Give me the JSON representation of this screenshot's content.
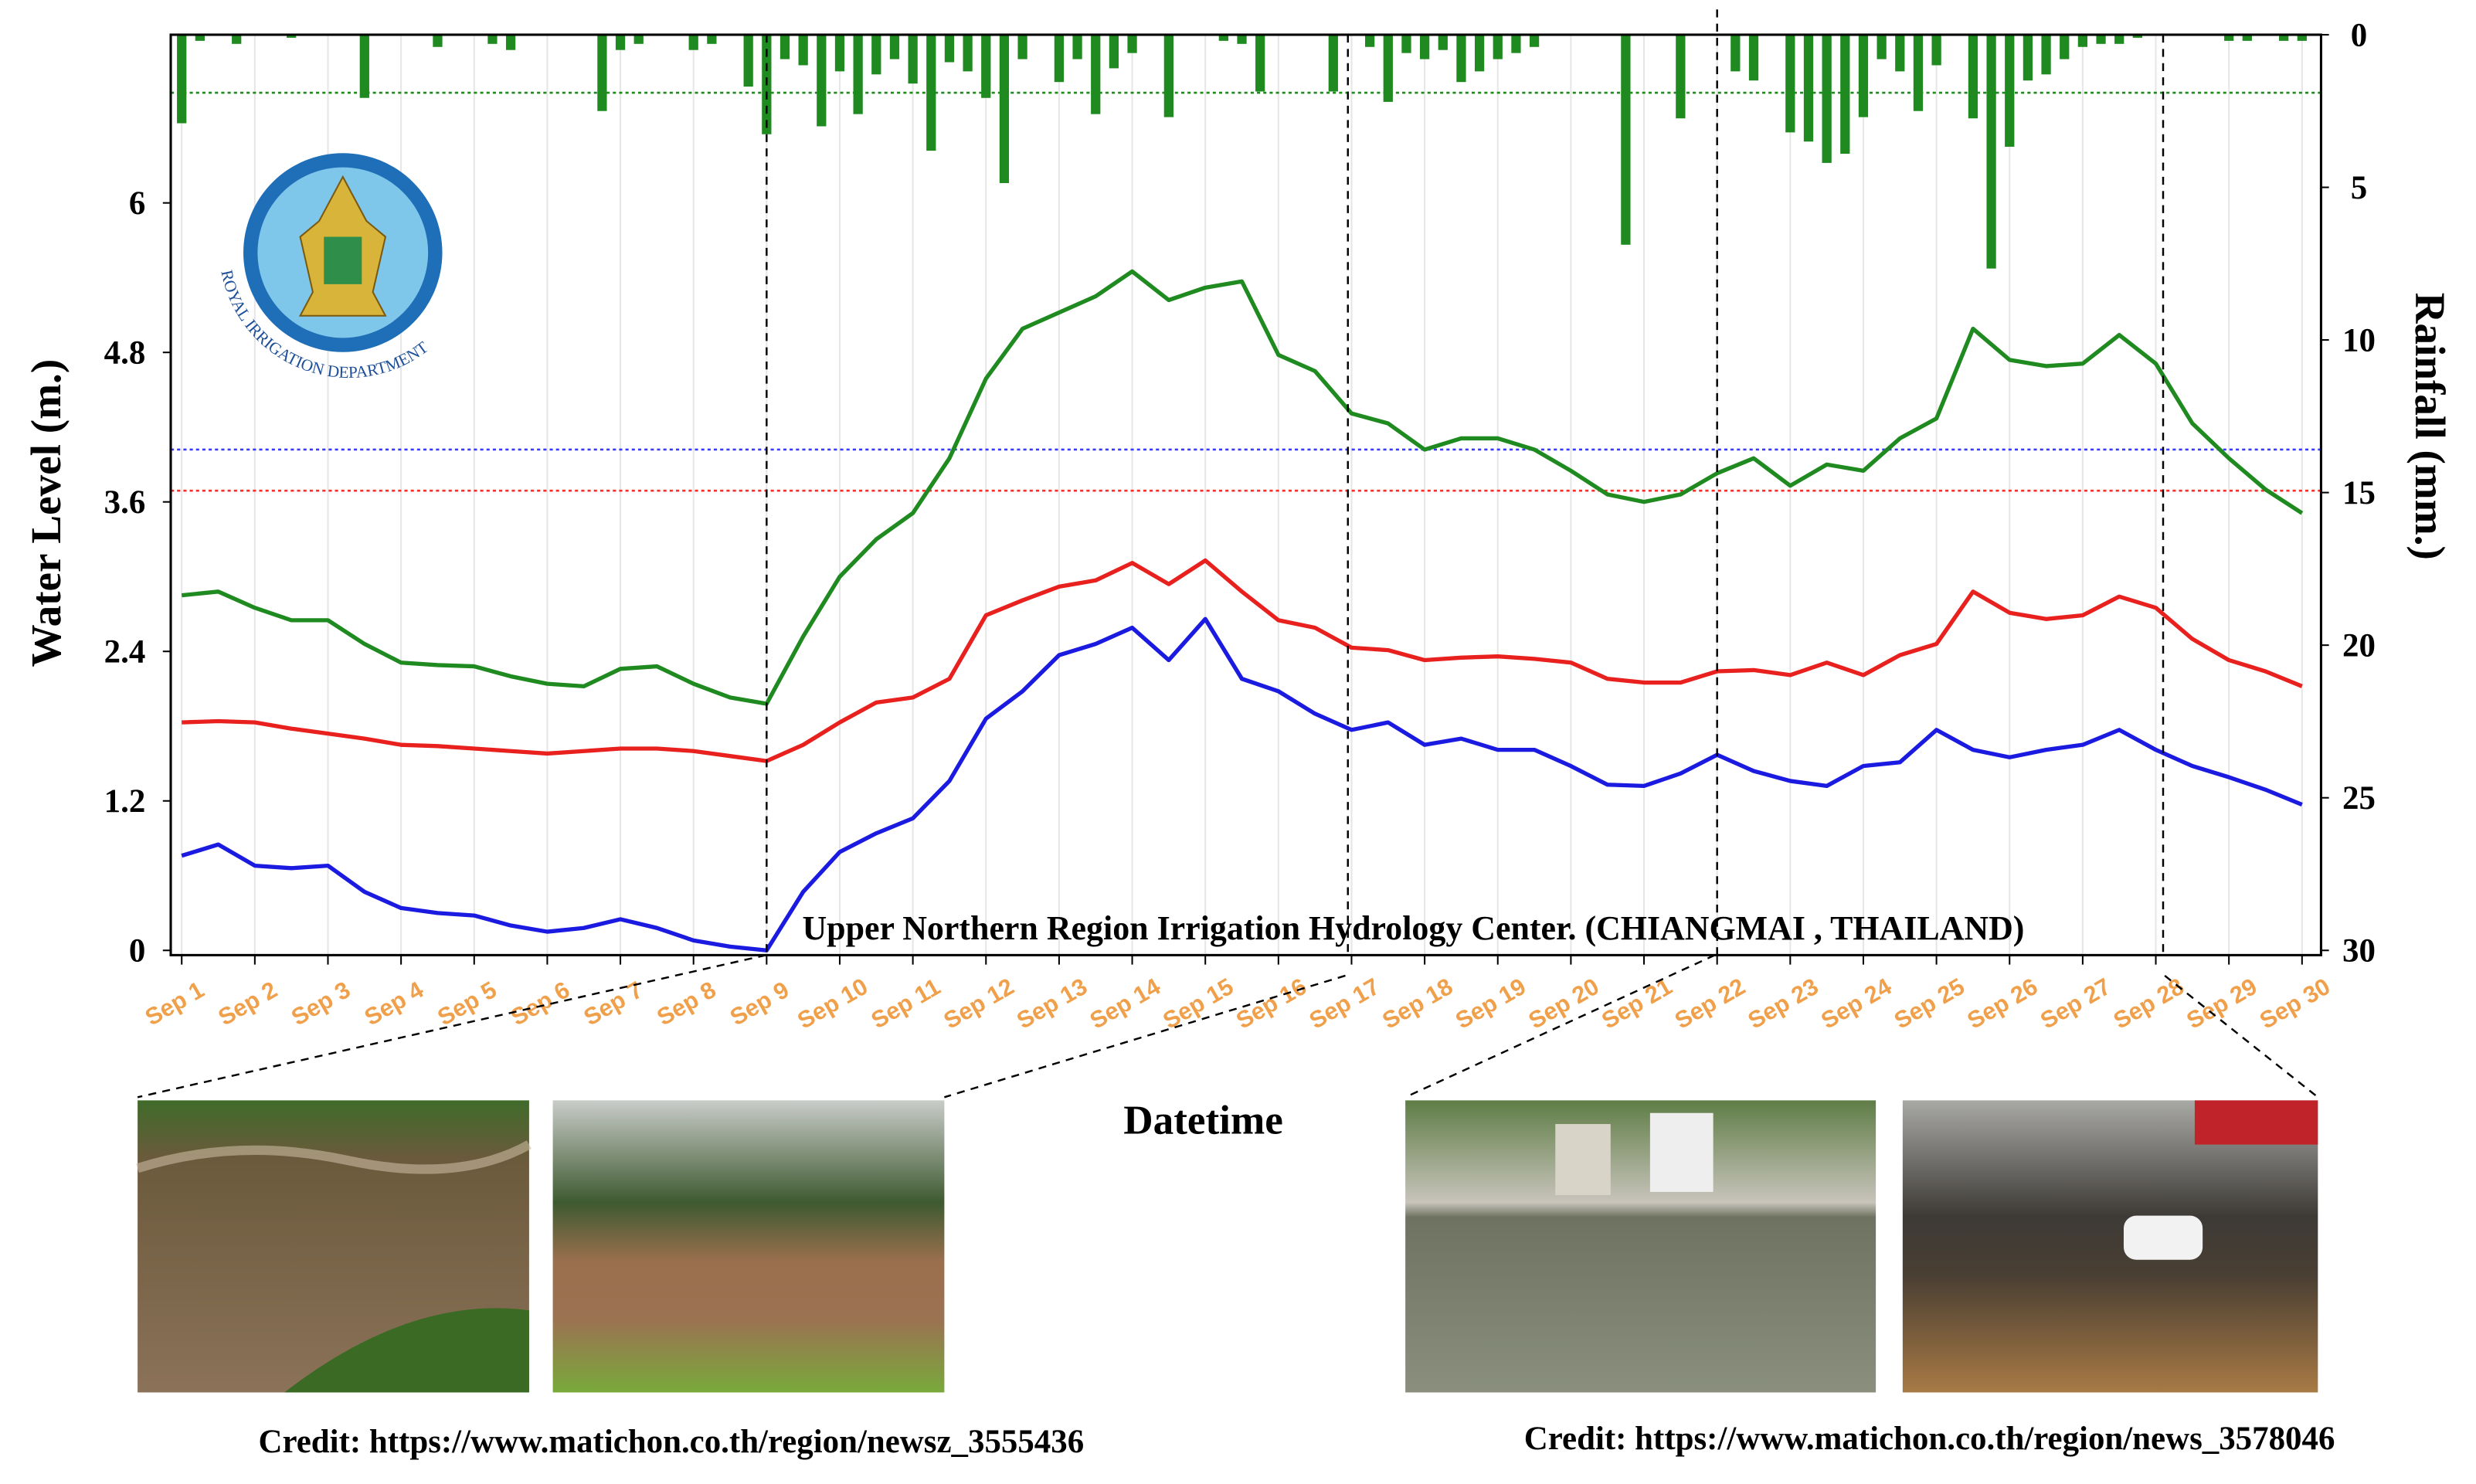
{
  "chart_data": {
    "type": "line",
    "ylabel": "Water Level (m.)",
    "y2label": "Rainfall (mm.)",
    "xlabel": "Datetime",
    "annotation": "Upper Northern Region Irrigation Hydrology Center. (CHIANGMAI , THAILAND)",
    "xlim": [
      0.85,
      30.26
    ],
    "xticks": [
      {
        "value": 1,
        "label": "Sep 1"
      },
      {
        "value": 2,
        "label": "Sep 2"
      },
      {
        "value": 3,
        "label": "Sep 3"
      },
      {
        "value": 4,
        "label": "Sep 4"
      },
      {
        "value": 5,
        "label": "Sep 5"
      },
      {
        "value": 6,
        "label": "Sep 6"
      },
      {
        "value": 7,
        "label": "Sep 7"
      },
      {
        "value": 8,
        "label": "Sep 8"
      },
      {
        "value": 9,
        "label": "Sep 9"
      },
      {
        "value": 10,
        "label": "Sep 10"
      },
      {
        "value": 11,
        "label": "Sep 11"
      },
      {
        "value": 12,
        "label": "Sep 12"
      },
      {
        "value": 13,
        "label": "Sep 13"
      },
      {
        "value": 14,
        "label": "Sep 14"
      },
      {
        "value": 15,
        "label": "Sep 15"
      },
      {
        "value": 16,
        "label": "Sep 16"
      },
      {
        "value": 17,
        "label": "Sep 17"
      },
      {
        "value": 18,
        "label": "Sep 18"
      },
      {
        "value": 19,
        "label": "Sep 19"
      },
      {
        "value": 20,
        "label": "Sep 20"
      },
      {
        "value": 21,
        "label": "Sep 21"
      },
      {
        "value": 22,
        "label": "Sep 22"
      },
      {
        "value": 23,
        "label": "Sep 23"
      },
      {
        "value": 24,
        "label": "Sep 24"
      },
      {
        "value": 25,
        "label": "Sep 25"
      },
      {
        "value": 26,
        "label": "Sep 26"
      },
      {
        "value": 27,
        "label": "Sep 27"
      },
      {
        "value": 28,
        "label": "Sep 28"
      },
      {
        "value": 29,
        "label": "Sep 29"
      },
      {
        "value": 30,
        "label": "Sep 30"
      }
    ],
    "ylim": [
      0,
      7.35
    ],
    "yticks": [
      0,
      1.2,
      2.4,
      3.6,
      4.8,
      6
    ],
    "y2lim": [
      30,
      0
    ],
    "y2ticks": [
      0,
      5,
      10,
      15,
      20,
      25,
      30
    ],
    "grid": "x",
    "x": [
      1,
      1.5,
      2,
      2.5,
      3,
      3.5,
      4,
      4.5,
      5,
      5.5,
      6,
      6.5,
      7,
      7.5,
      8,
      8.5,
      9,
      9.5,
      10,
      10.5,
      11,
      11.5,
      12,
      12.5,
      13,
      13.5,
      14,
      14.5,
      15,
      15.5,
      16,
      16.5,
      17,
      17.5,
      18,
      18.5,
      19,
      19.5,
      20,
      20.5,
      21,
      21.5,
      22,
      22.5,
      23,
      23.5,
      24,
      24.5,
      25,
      25.5,
      26,
      26.5,
      27,
      27.5,
      28,
      28.5,
      29,
      29.5,
      30
    ],
    "series": [
      {
        "color": "#1f8a1f",
        "values": [
          2.85,
          2.88,
          2.75,
          2.65,
          2.65,
          2.46,
          2.31,
          2.29,
          2.28,
          2.2,
          2.14,
          2.12,
          2.26,
          2.28,
          2.14,
          2.03,
          1.98,
          2.52,
          3.0,
          3.3,
          3.51,
          3.95,
          4.59,
          4.99,
          5.12,
          5.25,
          5.45,
          5.22,
          5.32,
          5.37,
          4.78,
          4.65,
          4.31,
          4.23,
          4.02,
          4.11,
          4.11,
          4.02,
          3.85,
          3.66,
          3.6,
          3.66,
          3.83,
          3.95,
          3.73,
          3.9,
          3.85,
          4.11,
          4.27,
          4.99,
          4.74,
          4.69,
          4.71,
          4.94,
          4.71,
          4.23,
          3.95,
          3.7,
          3.51
        ]
      },
      {
        "color": "#e8201e",
        "values": [
          1.83,
          1.84,
          1.83,
          1.78,
          1.74,
          1.7,
          1.65,
          1.64,
          1.62,
          1.6,
          1.58,
          1.6,
          1.62,
          1.62,
          1.6,
          1.56,
          1.52,
          1.65,
          1.83,
          1.99,
          2.03,
          2.18,
          2.69,
          2.81,
          2.92,
          2.97,
          3.11,
          2.94,
          3.13,
          2.88,
          2.65,
          2.59,
          2.43,
          2.41,
          2.33,
          2.35,
          2.36,
          2.34,
          2.31,
          2.18,
          2.15,
          2.15,
          2.24,
          2.25,
          2.21,
          2.31,
          2.21,
          2.37,
          2.46,
          2.88,
          2.71,
          2.66,
          2.69,
          2.84,
          2.75,
          2.5,
          2.33,
          2.24,
          2.12
        ]
      },
      {
        "color": "#1a1ae0",
        "values": [
          0.76,
          0.85,
          0.68,
          0.66,
          0.68,
          0.47,
          0.34,
          0.3,
          0.28,
          0.2,
          0.15,
          0.18,
          0.25,
          0.18,
          0.08,
          0.03,
          0,
          0.47,
          0.79,
          0.94,
          1.06,
          1.36,
          1.86,
          2.08,
          2.37,
          2.46,
          2.59,
          2.33,
          2.66,
          2.18,
          2.08,
          1.9,
          1.77,
          1.83,
          1.65,
          1.7,
          1.61,
          1.61,
          1.48,
          1.33,
          1.32,
          1.42,
          1.57,
          1.44,
          1.36,
          1.32,
          1.48,
          1.51,
          1.77,
          1.61,
          1.55,
          1.61,
          1.65,
          1.77,
          1.61,
          1.48,
          1.39,
          1.29,
          1.17
        ]
      }
    ],
    "rainfall": {
      "axis": "y2",
      "color": "#1f8a1f",
      "x": [
        1,
        1.25,
        1.75,
        2.5,
        3.5,
        4.5,
        5.25,
        5.5,
        6.75,
        7,
        7.25,
        8,
        8.25,
        8.75,
        9,
        9.25,
        9.5,
        9.75,
        10,
        10.25,
        10.5,
        10.75,
        11,
        11.25,
        11.5,
        11.75,
        12,
        12.25,
        12.5,
        13,
        13.25,
        13.5,
        13.75,
        14,
        14.5,
        15.25,
        15.5,
        15.75,
        16.75,
        17.25,
        17.5,
        17.75,
        18,
        18.25,
        18.5,
        18.75,
        19,
        19.25,
        19.5,
        20.75,
        21.5,
        22.25,
        22.5,
        23,
        23.25,
        23.5,
        23.75,
        24,
        24.25,
        24.5,
        24.75,
        25,
        25.5,
        25.75,
        26,
        26.25,
        26.5,
        26.75,
        27,
        27.25,
        27.5,
        27.75,
        29,
        29.25,
        29.75,
        30
      ],
      "values": [
        2.9,
        0.2,
        0.3,
        0.1,
        2.07,
        0.4,
        0.3,
        0.5,
        2.5,
        0.5,
        0.3,
        0.5,
        0.3,
        1.7,
        3.26,
        0.8,
        1.0,
        3.0,
        1.2,
        2.6,
        1.3,
        0.8,
        1.6,
        3.8,
        0.9,
        1.2,
        2.07,
        4.86,
        0.8,
        1.55,
        0.8,
        2.6,
        1.1,
        0.6,
        2.7,
        0.2,
        0.3,
        1.86,
        1.86,
        0.4,
        2.2,
        0.6,
        0.8,
        0.5,
        1.55,
        1.2,
        0.8,
        0.6,
        0.4,
        6.88,
        2.74,
        1.2,
        1.5,
        3.2,
        3.5,
        4.2,
        3.9,
        2.7,
        0.8,
        1.2,
        2.5,
        1.0,
        2.74,
        7.66,
        3.67,
        1.5,
        1.3,
        0.8,
        0.4,
        0.3,
        0.3,
        0.1,
        0.2,
        0.2,
        0.2,
        0.2
      ]
    },
    "reference_lines": [
      {
        "value": 4.02,
        "axis": "y",
        "color": "#3a3aff"
      },
      {
        "value": 3.69,
        "axis": "y",
        "color": "#ff2a2a"
      },
      {
        "value": 1.9,
        "axis": "y2",
        "color": "#1f8a1f"
      }
    ],
    "highlight_x": [
      9,
      16.95,
      22,
      28.1
    ],
    "tick_label_color": "#f0a04b"
  },
  "logo_text": "ROYAL IRRIGATION DEPARTMENT",
  "credits": [
    "Credit: https://www.matichon.co.th/region/newsz_3555436",
    "Credit: https://www.matichon.co.th/region/news_3578046"
  ]
}
